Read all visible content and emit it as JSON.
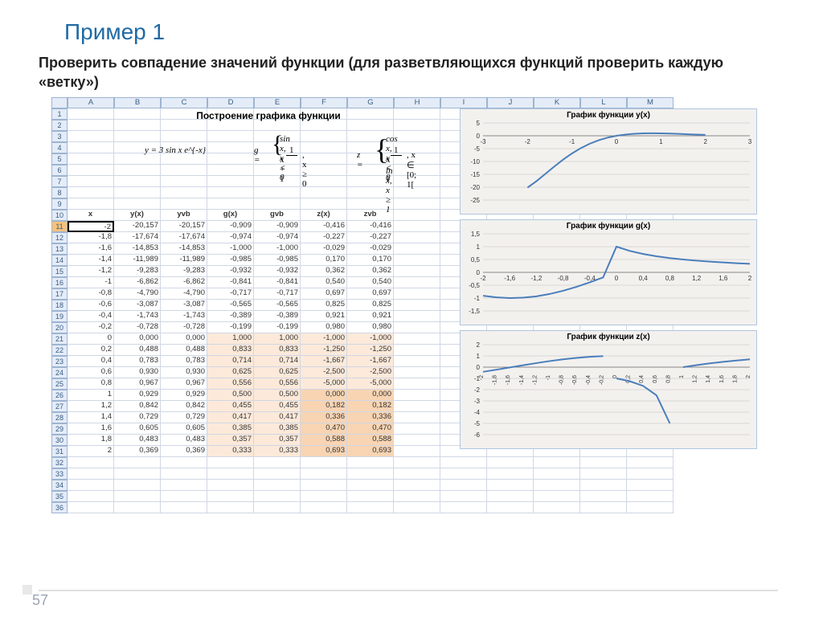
{
  "title": "Пример 1",
  "subtitle": "Проверить совпадение значений функции (для разветвляющихся функций проверить каждую «ветку»)",
  "page_number": "57",
  "spreadsheet": {
    "columns": [
      "",
      "A",
      "B",
      "C",
      "D",
      "E",
      "F",
      "G",
      "H",
      "I",
      "J",
      "K",
      "L",
      "M"
    ],
    "merged_title": "Построение графика функции",
    "formulas": {
      "y": "y = 3 sin x e^{-x}",
      "g_top": "sin x, x < 0",
      "g_mid": "g =",
      "g_frac_top": "1",
      "g_frac_bot": "x + 1",
      "g_cond": ", x ≥ 0",
      "z_mid": "z =",
      "z_top": "cos x, x < 0",
      "z_frac_top": "1",
      "z_frac_bot": "x − 1",
      "z_cond": ", x ∈ [0; 1[",
      "z_ln": "ln x, x ≥ 1"
    },
    "header_row": [
      "x",
      "y(x)",
      "yvb",
      "g(x)",
      "gvb",
      "z(x)",
      "zvb"
    ],
    "rows": [
      {
        "r": 11,
        "v": [
          "-2",
          "-20,157",
          "-20,157",
          "-0,909",
          "-0,909",
          "-0,416",
          "-0,416"
        ],
        "hl": [
          0,
          0,
          0,
          0,
          0,
          0,
          0
        ],
        "sel": true
      },
      {
        "r": 12,
        "v": [
          "-1,8",
          "-17,674",
          "-17,674",
          "-0,974",
          "-0,974",
          "-0,227",
          "-0,227"
        ],
        "hl": [
          0,
          0,
          0,
          0,
          0,
          0,
          0
        ]
      },
      {
        "r": 13,
        "v": [
          "-1,6",
          "-14,853",
          "-14,853",
          "-1,000",
          "-1,000",
          "-0,029",
          "-0,029"
        ],
        "hl": [
          0,
          0,
          0,
          0,
          0,
          0,
          0
        ]
      },
      {
        "r": 14,
        "v": [
          "-1,4",
          "-11,989",
          "-11,989",
          "-0,985",
          "-0,985",
          "0,170",
          "0,170"
        ],
        "hl": [
          0,
          0,
          0,
          0,
          0,
          0,
          0
        ]
      },
      {
        "r": 15,
        "v": [
          "-1,2",
          "-9,283",
          "-9,283",
          "-0,932",
          "-0,932",
          "0,362",
          "0,362"
        ],
        "hl": [
          0,
          0,
          0,
          0,
          0,
          0,
          0
        ]
      },
      {
        "r": 16,
        "v": [
          "-1",
          "-6,862",
          "-6,862",
          "-0,841",
          "-0,841",
          "0,540",
          "0,540"
        ],
        "hl": [
          0,
          0,
          0,
          0,
          0,
          0,
          0
        ]
      },
      {
        "r": 17,
        "v": [
          "-0,8",
          "-4,790",
          "-4,790",
          "-0,717",
          "-0,717",
          "0,697",
          "0,697"
        ],
        "hl": [
          0,
          0,
          0,
          0,
          0,
          0,
          0
        ]
      },
      {
        "r": 18,
        "v": [
          "-0,6",
          "-3,087",
          "-3,087",
          "-0,565",
          "-0,565",
          "0,825",
          "0,825"
        ],
        "hl": [
          0,
          0,
          0,
          0,
          0,
          0,
          0
        ]
      },
      {
        "r": 19,
        "v": [
          "-0,4",
          "-1,743",
          "-1,743",
          "-0,389",
          "-0,389",
          "0,921",
          "0,921"
        ],
        "hl": [
          0,
          0,
          0,
          0,
          0,
          0,
          0
        ]
      },
      {
        "r": 20,
        "v": [
          "-0,2",
          "-0,728",
          "-0,728",
          "-0,199",
          "-0,199",
          "0,980",
          "0,980"
        ],
        "hl": [
          0,
          0,
          0,
          0,
          0,
          0,
          0
        ]
      },
      {
        "r": 21,
        "v": [
          "0",
          "0,000",
          "0,000",
          "1,000",
          "1,000",
          "-1,000",
          "-1,000"
        ],
        "hl": [
          0,
          0,
          0,
          1,
          1,
          1,
          1
        ]
      },
      {
        "r": 22,
        "v": [
          "0,2",
          "0,488",
          "0,488",
          "0,833",
          "0,833",
          "-1,250",
          "-1,250"
        ],
        "hl": [
          0,
          0,
          0,
          1,
          1,
          1,
          1
        ]
      },
      {
        "r": 23,
        "v": [
          "0,4",
          "0,783",
          "0,783",
          "0,714",
          "0,714",
          "-1,667",
          "-1,667"
        ],
        "hl": [
          0,
          0,
          0,
          1,
          1,
          1,
          1
        ]
      },
      {
        "r": 24,
        "v": [
          "0,6",
          "0,930",
          "0,930",
          "0,625",
          "0,625",
          "-2,500",
          "-2,500"
        ],
        "hl": [
          0,
          0,
          0,
          1,
          1,
          1,
          1
        ]
      },
      {
        "r": 25,
        "v": [
          "0,8",
          "0,967",
          "0,967",
          "0,556",
          "0,556",
          "-5,000",
          "-5,000"
        ],
        "hl": [
          0,
          0,
          0,
          1,
          1,
          1,
          1
        ]
      },
      {
        "r": 26,
        "v": [
          "1",
          "0,929",
          "0,929",
          "0,500",
          "0,500",
          "0,000",
          "0,000"
        ],
        "hl": [
          0,
          0,
          0,
          1,
          1,
          2,
          2
        ]
      },
      {
        "r": 27,
        "v": [
          "1,2",
          "0,842",
          "0,842",
          "0,455",
          "0,455",
          "0,182",
          "0,182"
        ],
        "hl": [
          0,
          0,
          0,
          1,
          1,
          2,
          2
        ]
      },
      {
        "r": 28,
        "v": [
          "1,4",
          "0,729",
          "0,729",
          "0,417",
          "0,417",
          "0,336",
          "0,336"
        ],
        "hl": [
          0,
          0,
          0,
          1,
          1,
          2,
          2
        ]
      },
      {
        "r": 29,
        "v": [
          "1,6",
          "0,605",
          "0,605",
          "0,385",
          "0,385",
          "0,470",
          "0,470"
        ],
        "hl": [
          0,
          0,
          0,
          1,
          1,
          2,
          2
        ]
      },
      {
        "r": 30,
        "v": [
          "1,8",
          "0,483",
          "0,483",
          "0,357",
          "0,357",
          "0,588",
          "0,588"
        ],
        "hl": [
          0,
          0,
          0,
          1,
          1,
          2,
          2
        ]
      },
      {
        "r": 31,
        "v": [
          "2",
          "0,369",
          "0,369",
          "0,333",
          "0,333",
          "0,693",
          "0,693"
        ],
        "hl": [
          0,
          0,
          0,
          1,
          1,
          2,
          2
        ]
      }
    ],
    "empty_rows": [
      32,
      33,
      34,
      35,
      36
    ]
  },
  "charts": {
    "line_color": "#4a7ebb",
    "grid_color": "#c0c0c0",
    "bg": "#f3f1ee",
    "text_color": "#333333",
    "y": {
      "title": "График функции y(x)",
      "xlim": [
        -3,
        3
      ],
      "xticks": [
        -3,
        -2,
        -1,
        0,
        1,
        2,
        3
      ],
      "ylim": [
        -25,
        5
      ],
      "yticks": [
        5,
        0,
        -5,
        -10,
        -15,
        -20,
        -25
      ],
      "points": [
        [
          -2,
          -20.157
        ],
        [
          -1.8,
          -17.674
        ],
        [
          -1.6,
          -14.853
        ],
        [
          -1.4,
          -11.989
        ],
        [
          -1.2,
          -9.283
        ],
        [
          -1,
          -6.862
        ],
        [
          -0.8,
          -4.79
        ],
        [
          -0.6,
          -3.087
        ],
        [
          -0.4,
          -1.743
        ],
        [
          -0.2,
          -0.728
        ],
        [
          0,
          0
        ],
        [
          0.2,
          0.488
        ],
        [
          0.4,
          0.783
        ],
        [
          0.6,
          0.93
        ],
        [
          0.8,
          0.967
        ],
        [
          1,
          0.929
        ],
        [
          1.2,
          0.842
        ],
        [
          1.4,
          0.729
        ],
        [
          1.6,
          0.605
        ],
        [
          1.8,
          0.483
        ],
        [
          2,
          0.369
        ]
      ]
    },
    "g": {
      "title": "График функции g(x)",
      "xlim": [
        -2,
        2
      ],
      "xticks": [
        -2,
        -1.6,
        -1.2,
        -0.8,
        -0.4,
        0,
        0.4,
        0.8,
        1.2,
        1.6,
        2
      ],
      "ylim": [
        -1.5,
        1.5
      ],
      "yticks": [
        1.5,
        1.0,
        0.5,
        0,
        -0.5,
        -1.0,
        -1.5
      ],
      "points": [
        [
          -2,
          -0.909
        ],
        [
          -1.8,
          -0.974
        ],
        [
          -1.6,
          -1.0
        ],
        [
          -1.4,
          -0.985
        ],
        [
          -1.2,
          -0.932
        ],
        [
          -1,
          -0.841
        ],
        [
          -0.8,
          -0.717
        ],
        [
          -0.6,
          -0.565
        ],
        [
          -0.4,
          -0.389
        ],
        [
          -0.2,
          -0.199
        ],
        [
          0,
          1.0
        ],
        [
          0.2,
          0.833
        ],
        [
          0.4,
          0.714
        ],
        [
          0.6,
          0.625
        ],
        [
          0.8,
          0.556
        ],
        [
          1,
          0.5
        ],
        [
          1.2,
          0.455
        ],
        [
          1.4,
          0.417
        ],
        [
          1.6,
          0.385
        ],
        [
          1.8,
          0.357
        ],
        [
          2,
          0.333
        ]
      ]
    },
    "z": {
      "title": "График функции z(x)",
      "xlim": [
        -2,
        2
      ],
      "xticks": [
        -2,
        -1.8,
        -1.6,
        -1.4,
        -1.2,
        -1,
        -0.8,
        -0.6,
        -0.4,
        -0.2,
        0,
        0.2,
        0.4,
        0.6,
        0.8,
        1,
        1.2,
        1.4,
        1.6,
        1.8,
        2
      ],
      "ylim": [
        -6,
        2
      ],
      "yticks": [
        2,
        1,
        0,
        -1,
        -2,
        -3,
        -4,
        -5,
        -6
      ],
      "segments": [
        [
          [
            -2,
            -0.416
          ],
          [
            -1.8,
            -0.227
          ],
          [
            -1.6,
            -0.029
          ],
          [
            -1.4,
            0.17
          ],
          [
            -1.2,
            0.362
          ],
          [
            -1,
            0.54
          ],
          [
            -0.8,
            0.697
          ],
          [
            -0.6,
            0.825
          ],
          [
            -0.4,
            0.921
          ],
          [
            -0.2,
            0.98
          ]
        ],
        [
          [
            0,
            -1.0
          ],
          [
            0.2,
            -1.25
          ],
          [
            0.4,
            -1.667
          ],
          [
            0.6,
            -2.5
          ],
          [
            0.8,
            -5.0
          ]
        ],
        [
          [
            1,
            0
          ],
          [
            1.2,
            0.182
          ],
          [
            1.4,
            0.336
          ],
          [
            1.6,
            0.47
          ],
          [
            1.8,
            0.588
          ],
          [
            2,
            0.693
          ]
        ]
      ]
    }
  }
}
